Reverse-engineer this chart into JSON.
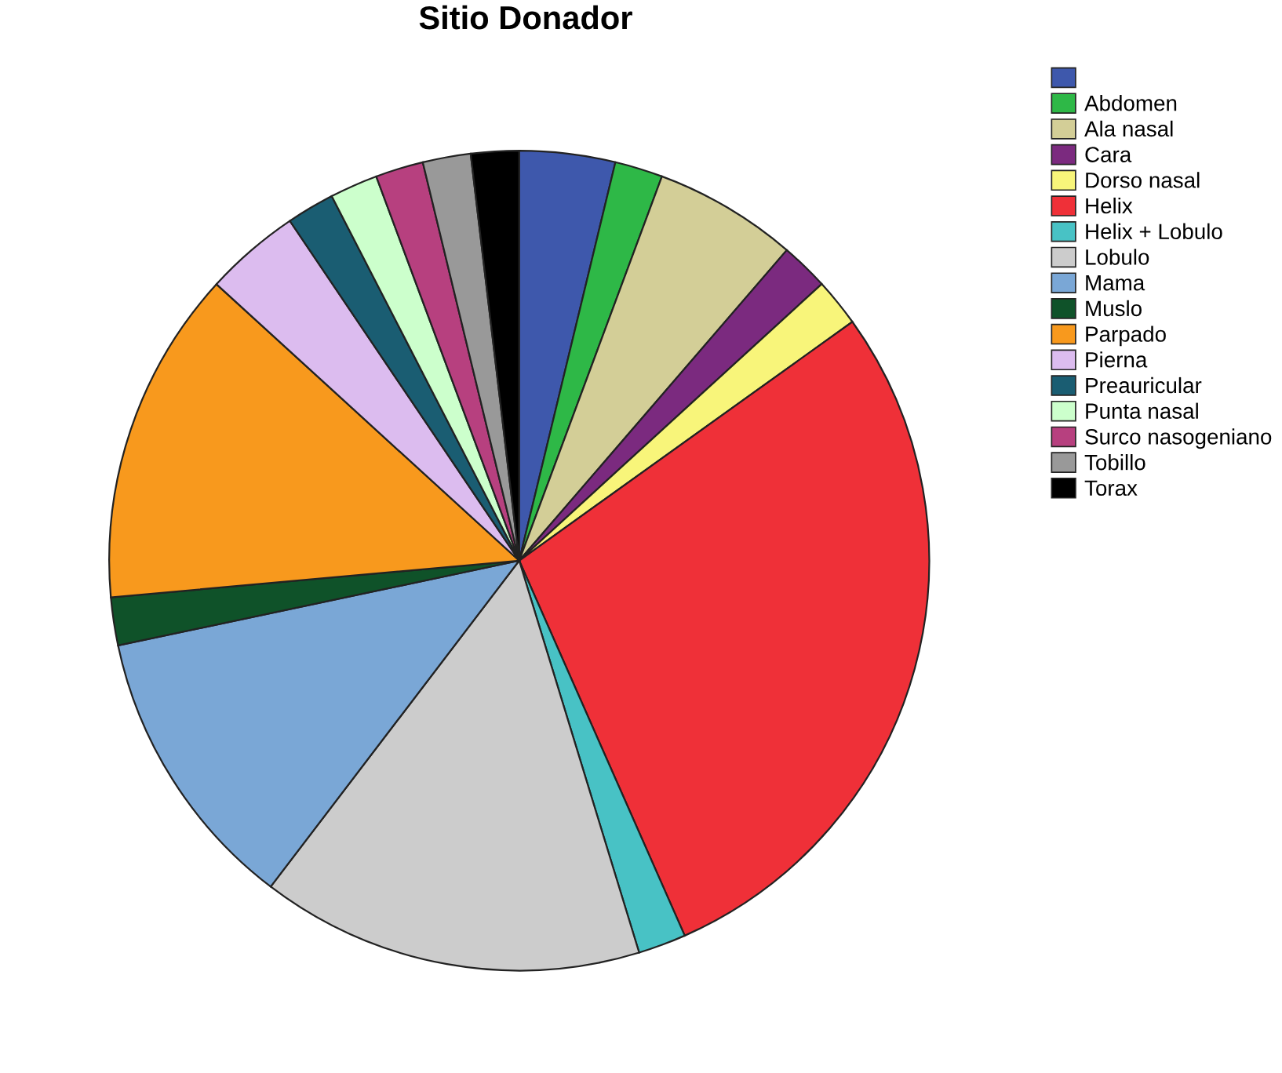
{
  "chart_data": {
    "type": "pie",
    "title": "Sitio Donador",
    "categories": [
      null,
      "Abdomen",
      "Ala nasal",
      "Cara",
      "Dorso nasal",
      "Helix",
      "Helix + Lobulo",
      "Lobulo",
      "Mama",
      "Muslo",
      "Parpado",
      "Pierna",
      "Preauricular",
      "Punta nasal",
      "Surco nasogeniano",
      "Tobillo",
      "Torax"
    ],
    "values": [
      3.77,
      1.89,
      5.66,
      1.89,
      1.89,
      28.29,
      1.89,
      15.09,
      11.32,
      1.89,
      13.21,
      3.77,
      1.89,
      1.89,
      1.89,
      1.89,
      1.89
    ],
    "colors": [
      "#3e58ac",
      "#2eb847",
      "#d3ce97",
      "#7b2a7f",
      "#f8f57a",
      "#ef3038",
      "#48c2c5",
      "#cccccc",
      "#7aa7d6",
      "#0f5229",
      "#f8991d",
      "#dcbcef",
      "#1a5d72",
      "#ccffcc",
      "#b7407f",
      "#999999",
      "#000000"
    ],
    "legend": "top right"
  }
}
